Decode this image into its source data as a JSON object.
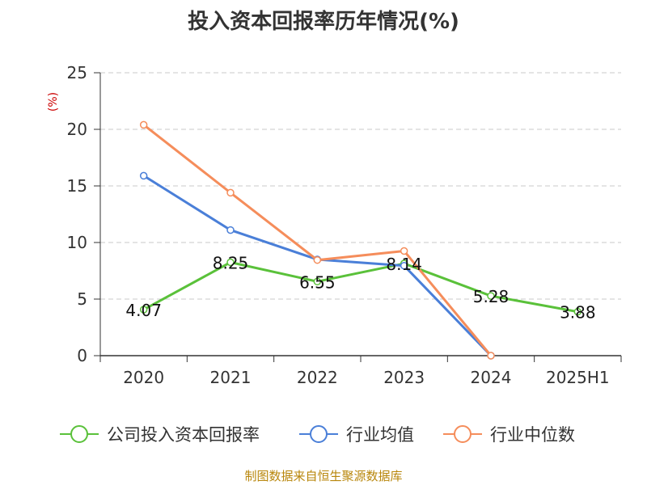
{
  "title": "投入资本回报率历年情况(%)",
  "source": "制图数据来自恒生聚源数据库",
  "chart_data": {
    "type": "line",
    "title": "投入资本回报率历年情况(%)",
    "ylabel": "(%)",
    "categories": [
      "2020",
      "2021",
      "2022",
      "2023",
      "2024",
      "2025H1"
    ],
    "ylim": [
      0,
      25
    ],
    "yticks": [
      0,
      5,
      10,
      15,
      20,
      25
    ],
    "grid": true,
    "legend_position": "bottom",
    "series": [
      {
        "name": "公司投入资本回报率",
        "color": "#5ac13a",
        "values": [
          4.07,
          8.25,
          6.55,
          8.14,
          5.28,
          3.88
        ],
        "labels": [
          "4.07",
          "8.25",
          "6.55",
          "8.14",
          "5.28",
          "3.88"
        ]
      },
      {
        "name": "行业均值",
        "color": "#4a7fd8",
        "values": [
          15.9,
          11.1,
          8.5,
          7.95,
          0,
          null
        ]
      },
      {
        "name": "行业中位数",
        "color": "#f58d5b",
        "values": [
          20.4,
          14.4,
          8.45,
          9.25,
          0,
          null
        ]
      }
    ]
  }
}
